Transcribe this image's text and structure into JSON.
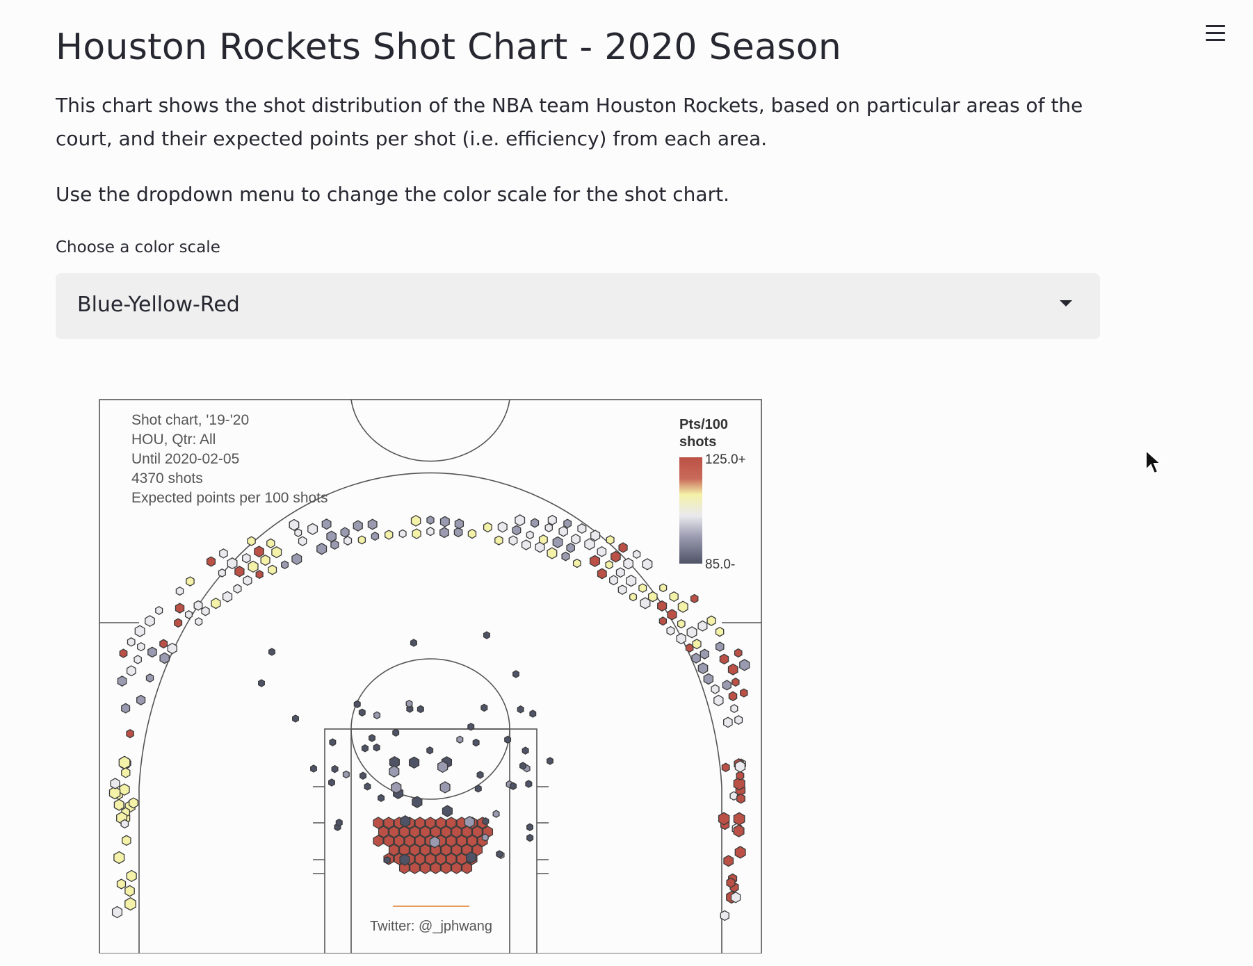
{
  "header": {
    "title": "Houston Rockets Shot Chart - 2020 Season",
    "menu_icon": "hamburger-menu-icon"
  },
  "body": {
    "paragraph1": "This chart shows the shot distribution of the NBA team Houston Rockets, based on particular areas of the court, and their expected points per shot (i.e. efficiency) from each area.",
    "paragraph2": "Use the dropdown menu to change the color scale for the shot chart."
  },
  "select": {
    "label": "Choose a color scale",
    "value": "Blue-Yellow-Red",
    "icon": "chevron-down-icon"
  },
  "chart_data": {
    "type": "hexbin",
    "info_lines": [
      "Shot chart, '19-'20",
      "HOU, Qtr: All",
      "Until 2020-02-05",
      "4370 shots",
      "Expected points per 100 shots"
    ],
    "legend": {
      "title_line1": "Pts/100",
      "title_line2": "shots",
      "max_label": "125.0+",
      "min_label": "85.0-",
      "min": 85,
      "max": 125
    },
    "credit": "Twitter: @_jphwang",
    "colors": {
      "low": "#4f5366",
      "mid_low": "#9a9bb0",
      "mid": "#e9e9ee",
      "mid_high": "#f4f1a8",
      "high": "#bb5146"
    }
  },
  "cursor": {
    "icon": "mouse-pointer-icon"
  }
}
